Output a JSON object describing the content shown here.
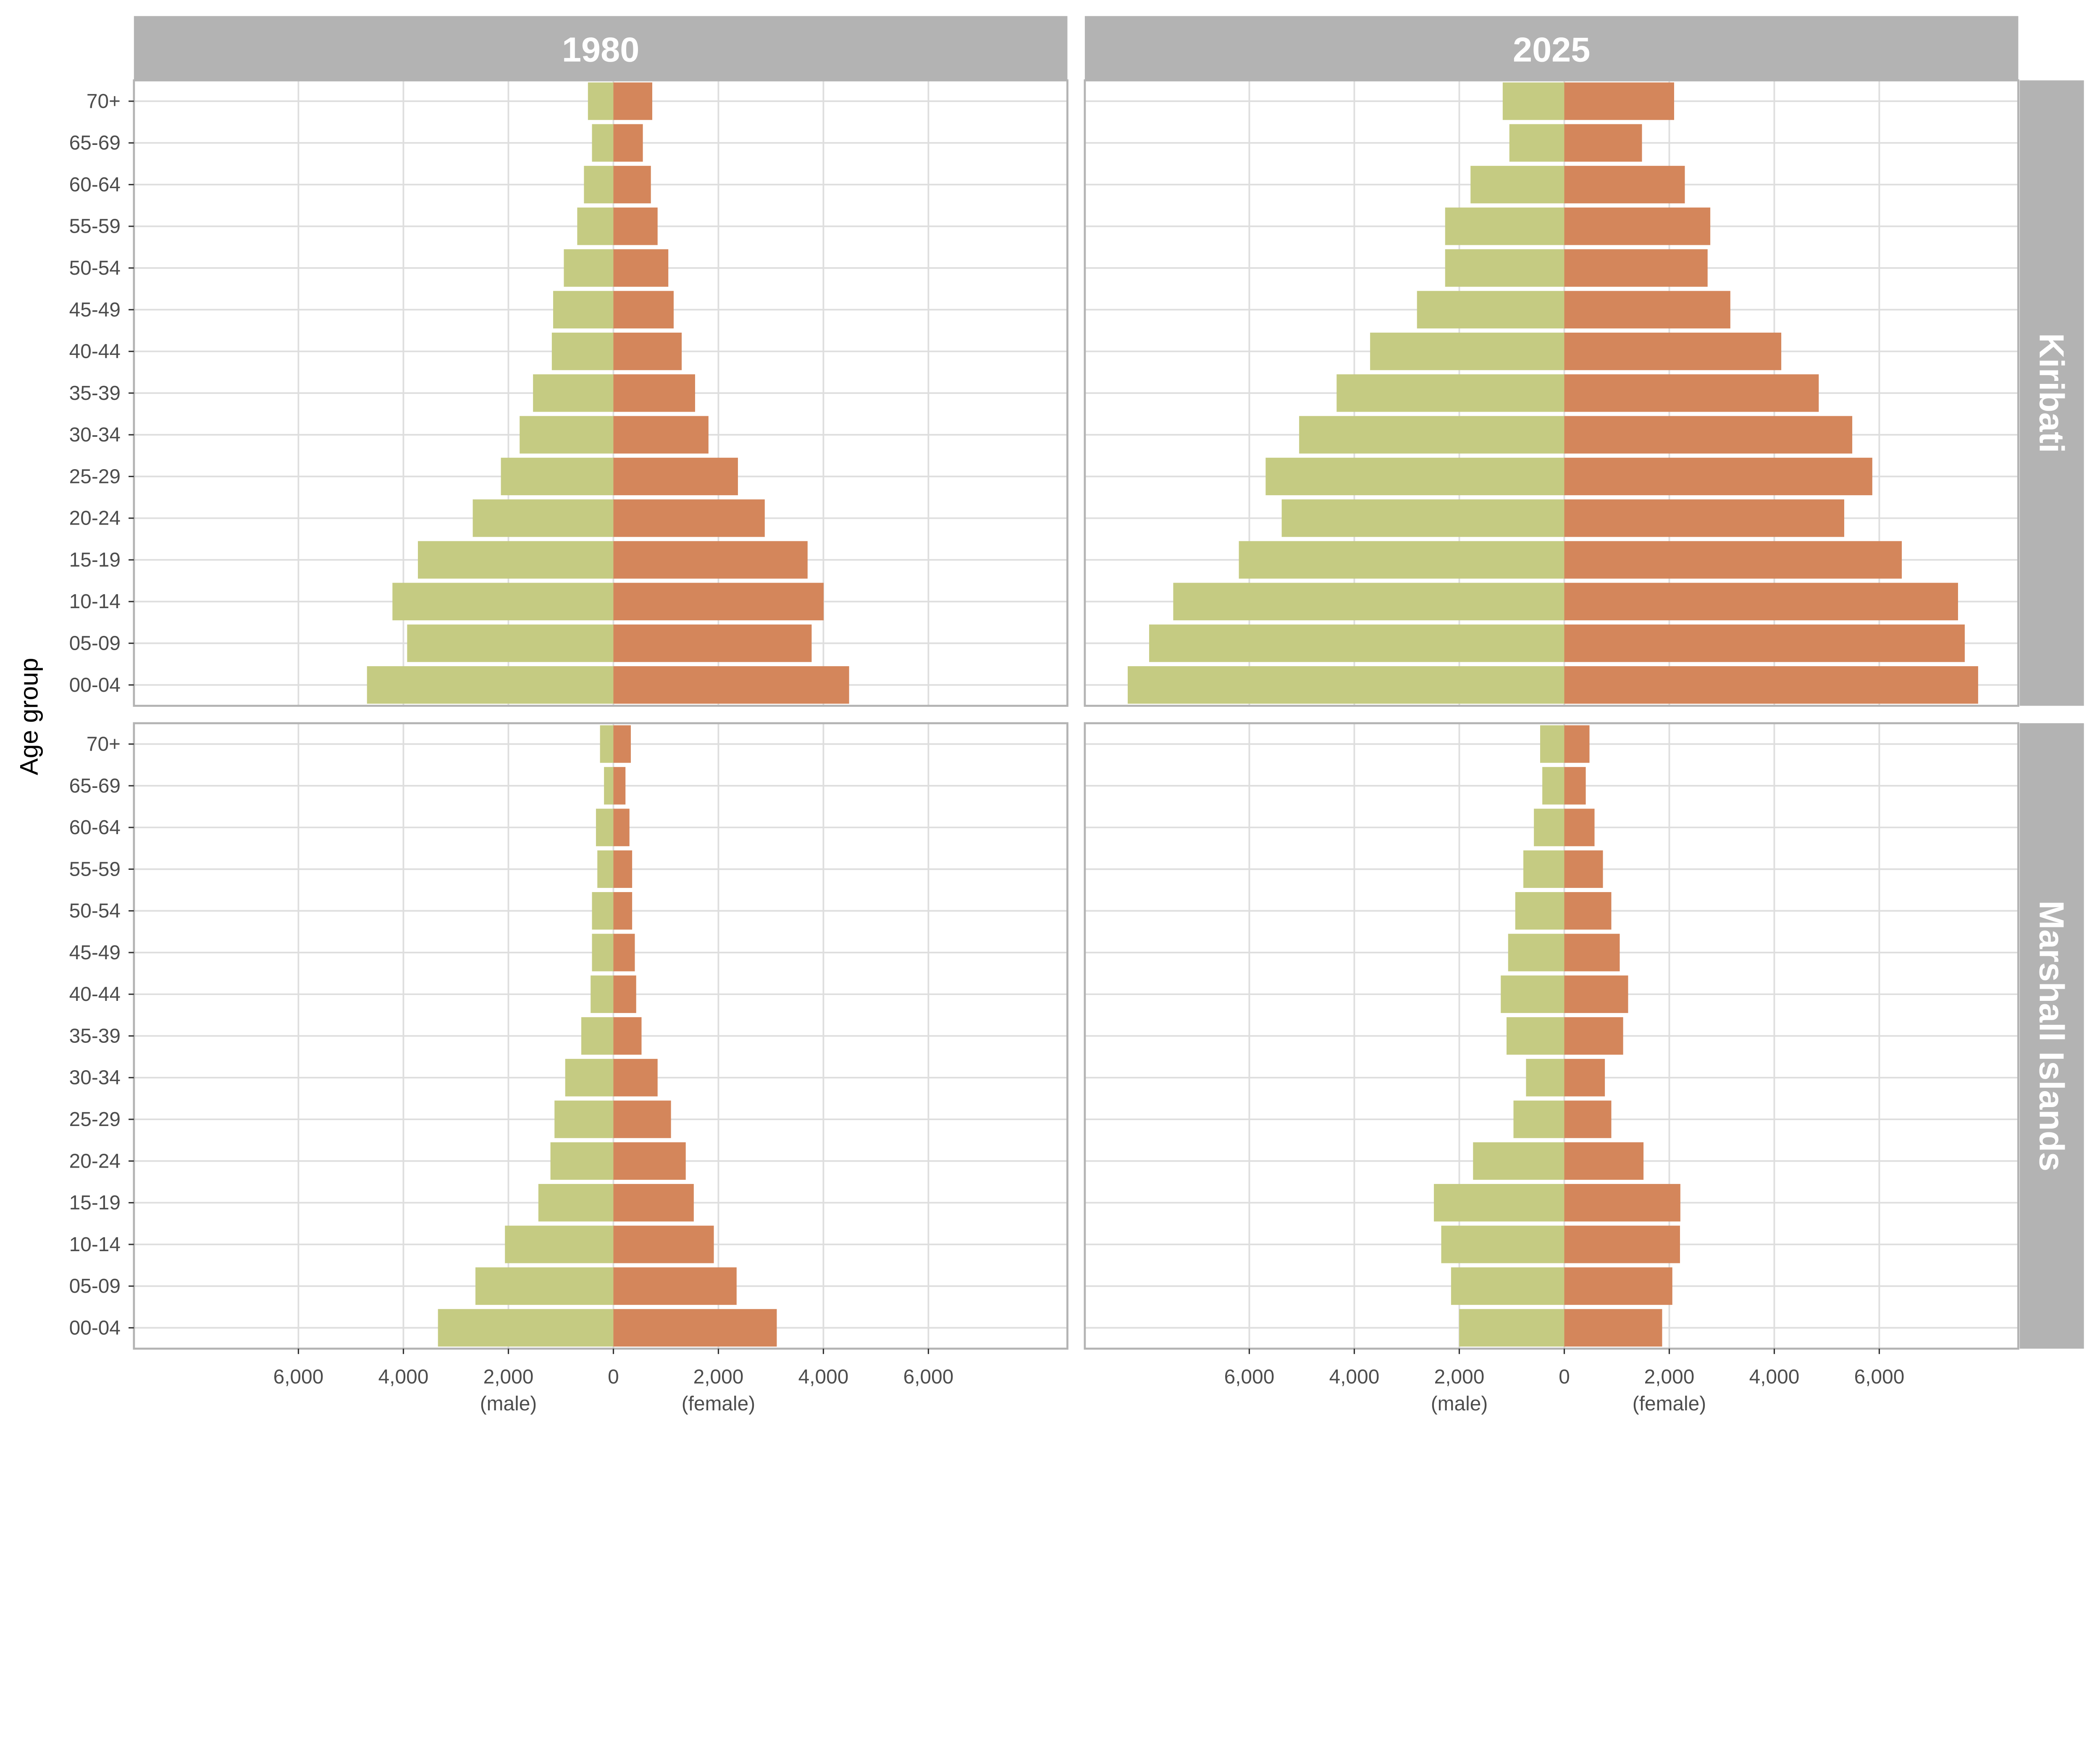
{
  "chart_data": {
    "type": "bar",
    "subtype": "population-pyramid",
    "ylabel": "Age group",
    "x_tick_labels": [
      "6,000",
      "4,000",
      "2,000",
      "0",
      "2,000",
      "4,000",
      "6,000"
    ],
    "x_ticks": [
      -6000,
      -4000,
      -2000,
      0,
      2000,
      4000,
      6000
    ],
    "x_sublabels": {
      "male": "(male)",
      "female": "(female)"
    },
    "xlim": [
      -9133,
      8648
    ],
    "grid": true,
    "colors": {
      "male": "#c5cb82",
      "female": "#d4865b",
      "strip": "#b3b3b3"
    },
    "categories": [
      "70+",
      "65-69",
      "60-64",
      "55-59",
      "50-54",
      "45-49",
      "40-44",
      "35-39",
      "30-34",
      "25-29",
      "20-24",
      "15-19",
      "10-14",
      "05-09",
      "00-04"
    ],
    "columns": [
      "1980",
      "2025"
    ],
    "rows": [
      "Kiribati",
      "Marshall Islands"
    ],
    "panels": [
      {
        "row": "Kiribati",
        "column": "1980",
        "male": [
          485,
          408,
          561,
          689,
          944,
          1148,
          1173,
          1531,
          1786,
          2143,
          2679,
          3724,
          4209,
          3929,
          4694
        ],
        "female": [
          740,
          561,
          714,
          842,
          1046,
          1148,
          1301,
          1556,
          1811,
          2372,
          2883,
          3699,
          4005,
          3776,
          4490
        ]
      },
      {
        "row": "Kiribati",
        "column": "2025",
        "male": [
          1173,
          1046,
          1786,
          2270,
          2270,
          2806,
          3699,
          4337,
          5051,
          5689,
          5383,
          6199,
          7449,
          7908,
          8316
        ],
        "female": [
          2092,
          1480,
          2296,
          2781,
          2730,
          3163,
          4133,
          4847,
          5485,
          5867,
          5332,
          6429,
          7500,
          7628,
          7883
        ]
      },
      {
        "row": "Marshall Islands",
        "column": "1980",
        "male": [
          255,
          179,
          332,
          306,
          408,
          408,
          434,
          612,
          918,
          1122,
          1199,
          1429,
          2066,
          2628,
          3342
        ],
        "female": [
          332,
          230,
          306,
          357,
          357,
          408,
          434,
          536,
          842,
          1097,
          1378,
          1531,
          1913,
          2347,
          3112
        ]
      },
      {
        "row": "Marshall Islands",
        "column": "2025",
        "male": [
          460,
          419,
          579,
          780,
          934,
          1070,
          1210,
          1100,
          729,
          968,
          1738,
          2484,
          2344,
          2157,
          2003
        ],
        "female": [
          480,
          409,
          576,
          736,
          896,
          1056,
          1216,
          1121,
          773,
          896,
          1509,
          2211,
          2204,
          2058,
          1864
        ]
      }
    ]
  }
}
